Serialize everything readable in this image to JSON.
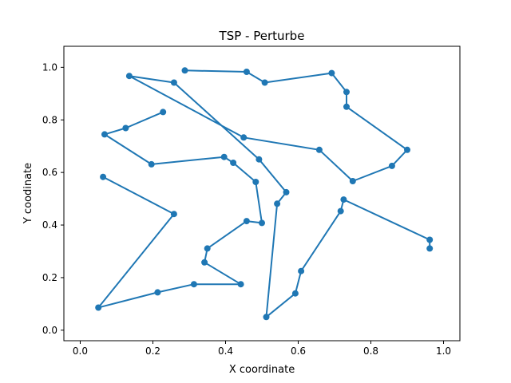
{
  "chart_data": {
    "type": "line",
    "title": "TSP - Perturbe",
    "xlabel": "X coordinate",
    "ylabel": "Y coodinate",
    "xlim": [
      -0.045,
      1.045
    ],
    "ylim": [
      -0.04,
      1.08
    ],
    "xticks": [
      "0.0",
      "0.2",
      "0.4",
      "0.6",
      "0.8",
      "1.0"
    ],
    "yticks": [
      "0.0",
      "0.2",
      "0.4",
      "0.6",
      "0.8",
      "1.0"
    ],
    "grid": false,
    "color": "#1f77b4",
    "series": [
      {
        "marker": "circle",
        "x": [
          0.288,
          0.458,
          0.508,
          0.692,
          0.733,
          0.733,
          0.9,
          0.858,
          0.75,
          0.658,
          0.45,
          0.135,
          0.258,
          0.492,
          0.567,
          0.542,
          0.512,
          0.592,
          0.608,
          0.717,
          0.725,
          0.962,
          0.962
        ],
        "y": [
          0.988,
          0.983,
          0.942,
          0.978,
          0.906,
          0.85,
          0.686,
          0.625,
          0.567,
          0.686,
          0.733,
          0.967,
          0.942,
          0.65,
          0.525,
          0.481,
          0.05,
          0.14,
          0.225,
          0.453,
          0.497,
          0.344,
          0.311
        ]
      },
      {
        "marker": "circle",
        "x": [
          0.228,
          0.125,
          0.067,
          0.196,
          0.396,
          0.421,
          0.483,
          0.5,
          0.458,
          0.35,
          0.342,
          0.442,
          0.313,
          0.213,
          0.05,
          0.258,
          0.063
        ],
        "y": [
          0.83,
          0.769,
          0.745,
          0.631,
          0.659,
          0.637,
          0.564,
          0.408,
          0.415,
          0.311,
          0.258,
          0.175,
          0.175,
          0.144,
          0.086,
          0.442,
          0.583
        ]
      }
    ]
  }
}
